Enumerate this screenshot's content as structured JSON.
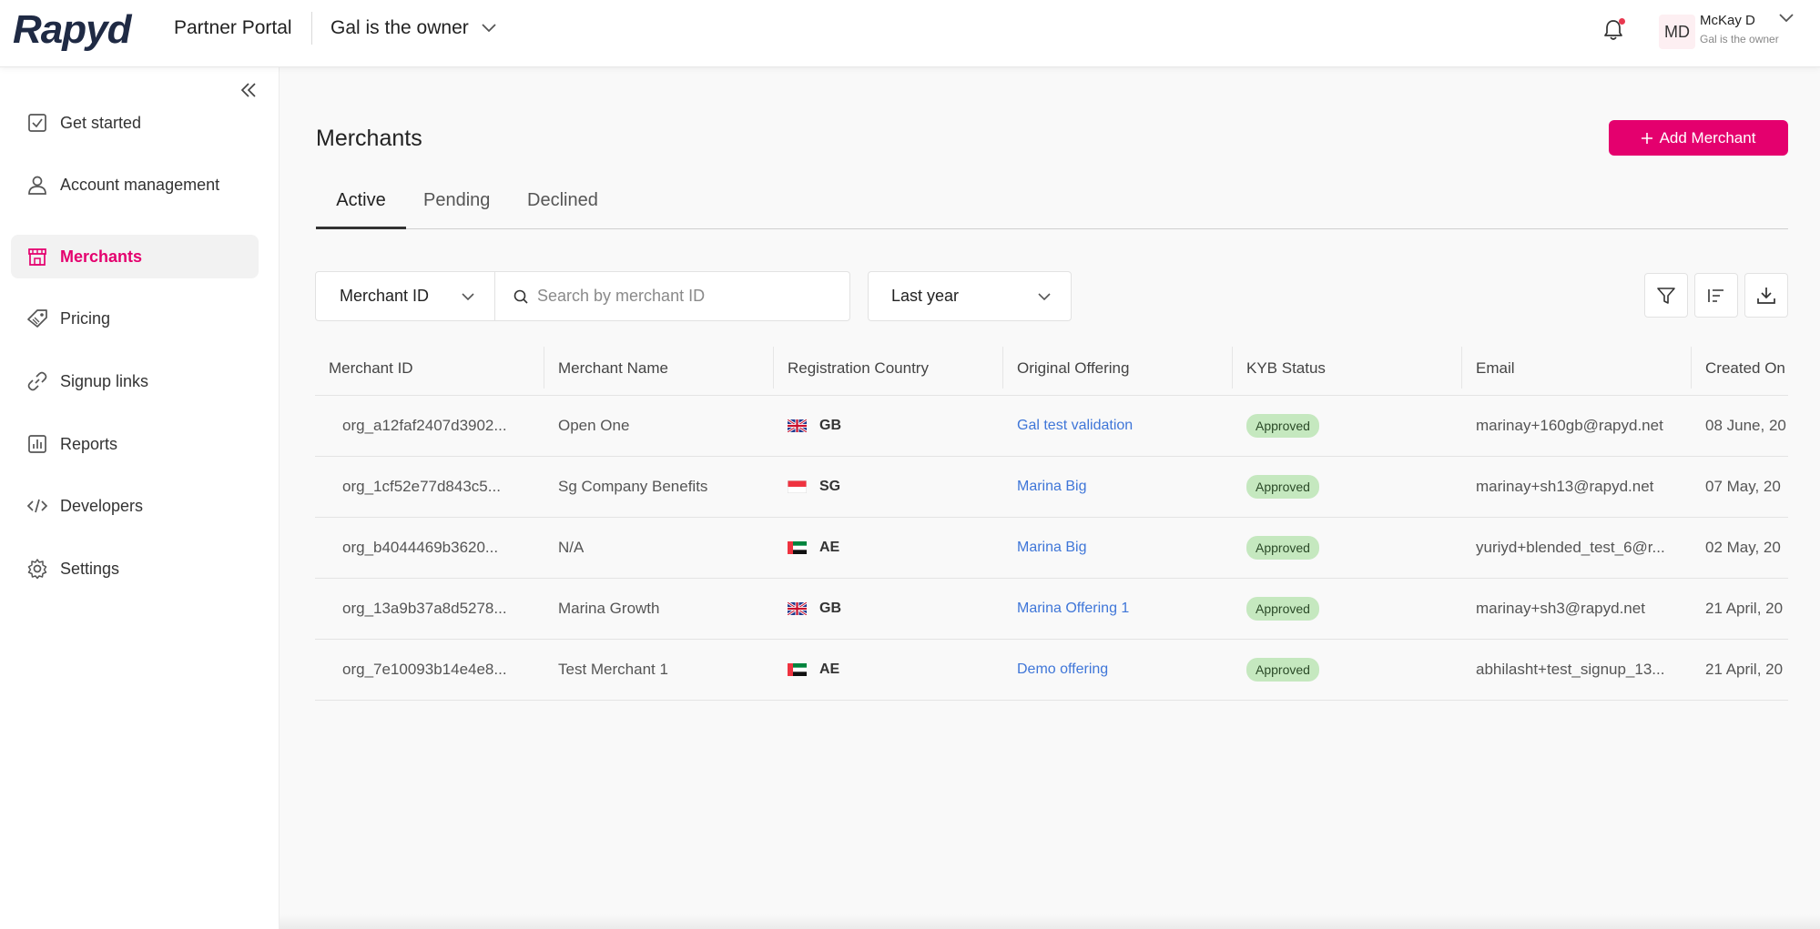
{
  "header": {
    "logo": "Rapyd",
    "portal_name": "Partner Portal",
    "org_selector": "Gal is the owner",
    "notification_dot_color": "#e8384f",
    "user": {
      "initials": "MD",
      "name": "McKay D",
      "role": "Gal is the owner"
    }
  },
  "sidebar": {
    "items": [
      {
        "label": "Get started",
        "icon": "checkbox-icon"
      },
      {
        "label": "Account management",
        "icon": "user-icon"
      },
      {
        "label": "Merchants",
        "icon": "store-icon",
        "active": true
      },
      {
        "label": "Pricing",
        "icon": "tag-icon"
      },
      {
        "label": "Signup links",
        "icon": "link-icon"
      },
      {
        "label": "Reports",
        "icon": "bar-chart-icon"
      },
      {
        "label": "Developers",
        "icon": "code-icon"
      },
      {
        "label": "Settings",
        "icon": "gear-icon"
      }
    ]
  },
  "main": {
    "title": "Merchants",
    "add_button": "Add Merchant",
    "tabs": [
      "Active",
      "Pending",
      "Declined"
    ],
    "active_tab": "Active",
    "filters": {
      "field_select": "Merchant ID",
      "search_placeholder": "Search by merchant ID",
      "date_range": "Last year"
    },
    "accent_color": "#e4006e",
    "table": {
      "columns": [
        "Merchant ID",
        "Merchant Name",
        "Registration Country",
        "Original Offering",
        "KYB Status",
        "Email",
        "Created On"
      ],
      "rows": [
        {
          "id": "org_a12faf2407d3902...",
          "name": "Open One",
          "country": "GB",
          "offering": "Gal test validation",
          "status": "Approved",
          "email": "marinay+160gb@rapyd.net",
          "created": "08 June, 20"
        },
        {
          "id": "org_1cf52e77d843c5...",
          "name": "Sg Company Benefits",
          "country": "SG",
          "offering": "Marina Big",
          "status": "Approved",
          "email": "marinay+sh13@rapyd.net",
          "created": "07 May, 20"
        },
        {
          "id": "org_b4044469b3620...",
          "name": "N/A",
          "country": "AE",
          "offering": "Marina Big",
          "status": "Approved",
          "email": "yuriyd+blended_test_6@r...",
          "created": "02 May, 20"
        },
        {
          "id": "org_13a9b37a8d5278...",
          "name": "Marina Growth",
          "country": "GB",
          "offering": "Marina Offering 1",
          "status": "Approved",
          "email": "marinay+sh3@rapyd.net",
          "created": "21 April, 20"
        },
        {
          "id": "org_7e10093b14e4e8...",
          "name": "Test Merchant 1",
          "country": "AE",
          "offering": "Demo offering",
          "status": "Approved",
          "email": "abhilasht+test_signup_13...",
          "created": "21 April, 20"
        }
      ]
    }
  }
}
